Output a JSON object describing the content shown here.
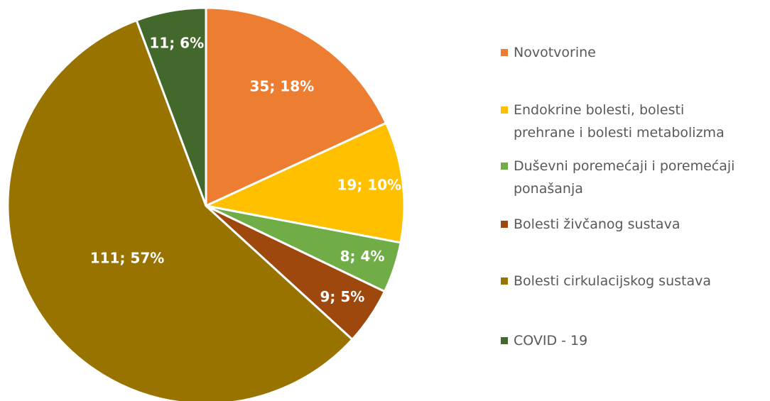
{
  "chart_data": {
    "type": "pie",
    "categories": [
      "Novotvorine",
      "Endokrine bolesti, bolesti prehrane i bolesti metabolizma",
      "Duševni poremećaji i poremećaji ponašanja",
      "Bolesti živčanog sustava",
      "Bolesti cirkulacijskog sustava",
      "COVID - 19"
    ],
    "values": [
      35,
      19,
      8,
      9,
      111,
      11
    ],
    "value_labels": [
      "35; 18%",
      "19; 10%",
      "8; 4%",
      "9; 5%",
      "111; 57%",
      "11; 6%"
    ],
    "colors": [
      "#ED7D31",
      "#FFC000",
      "#70AD47",
      "#9E480E",
      "#997300",
      "#43682B"
    ],
    "legend": "right"
  }
}
